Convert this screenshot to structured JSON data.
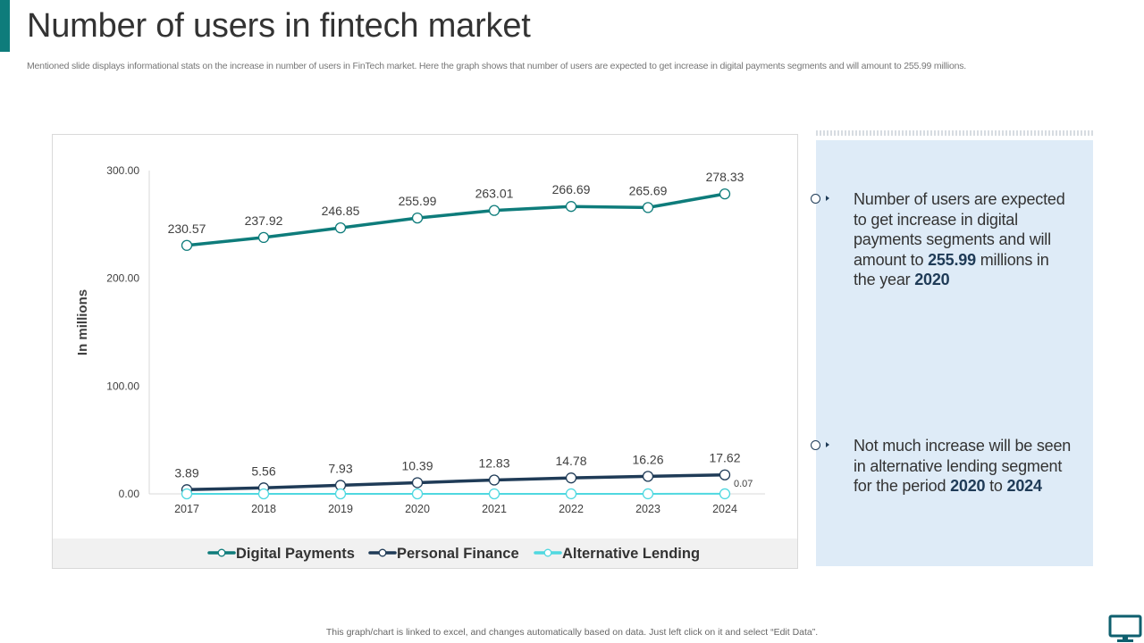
{
  "slide": {
    "title": "Number of users in fintech market",
    "subtitle": "Mentioned slide displays informational stats on the increase in number of users in FinTech market. Here the graph shows that number of users are expected to get increase in digital payments segments and will amount to 255.99 millions.",
    "footnote": "This graph/chart is linked to excel,  and changes automatically based on data. Just left click on it and select “Edit Data”.",
    "accent_color": "#0e7c7b"
  },
  "chart_data": {
    "type": "line",
    "title": "",
    "xlabel": "",
    "ylabel": "In millions",
    "categories": [
      "2017",
      "2018",
      "2019",
      "2020",
      "2021",
      "2022",
      "2023",
      "2024"
    ],
    "ylim": [
      0,
      300
    ],
    "yticks": [
      "0.00",
      "100.00",
      "200.00",
      "300.00"
    ],
    "legend_position": "bottom",
    "grid": false,
    "series": [
      {
        "name": "Digital Payments",
        "color": "#0e7c7b",
        "width": 3.5,
        "values": [
          230.57,
          237.92,
          246.85,
          255.99,
          263.01,
          266.69,
          265.69,
          278.33
        ],
        "labels": [
          "230.57",
          "237.92",
          "246.85",
          "255.99",
          "263.01",
          "266.69",
          "265.69",
          "278.33"
        ]
      },
      {
        "name": "Personal Finance",
        "color": "#1f3b57",
        "width": 3.5,
        "values": [
          3.89,
          5.56,
          7.93,
          10.39,
          12.83,
          14.78,
          16.26,
          17.62
        ],
        "labels": [
          "3.89",
          "5.56",
          "7.93",
          "10.39",
          "12.83",
          "14.78",
          "16.26",
          "17.62"
        ]
      },
      {
        "name": "Alternative Lending",
        "color": "#4fd8e0",
        "width": 2,
        "values": [
          0.01,
          0.01,
          0.02,
          0.02,
          0.03,
          0.04,
          0.05,
          0.07
        ],
        "labels": [
          "",
          "",
          "",
          "",
          "",
          "",
          "",
          "0.07"
        ]
      }
    ]
  },
  "insights": [
    {
      "parts": [
        {
          "text": "Number of users are expected to get increase in digital payments segments and will amount to ",
          "bold": false
        },
        {
          "text": "255.99",
          "bold": true
        },
        {
          "text": " millions in the year ",
          "bold": false
        },
        {
          "text": "2020",
          "bold": true
        }
      ]
    },
    {
      "parts": [
        {
          "text": "Not much increase will be seen in alternative lending segment for the period ",
          "bold": false
        },
        {
          "text": "2020",
          "bold": true
        },
        {
          "text": " to ",
          "bold": false
        },
        {
          "text": "2024",
          "bold": true
        }
      ]
    }
  ],
  "icons": {
    "footer": "monitor-icon",
    "bullet": "bullet-ring-icon"
  }
}
